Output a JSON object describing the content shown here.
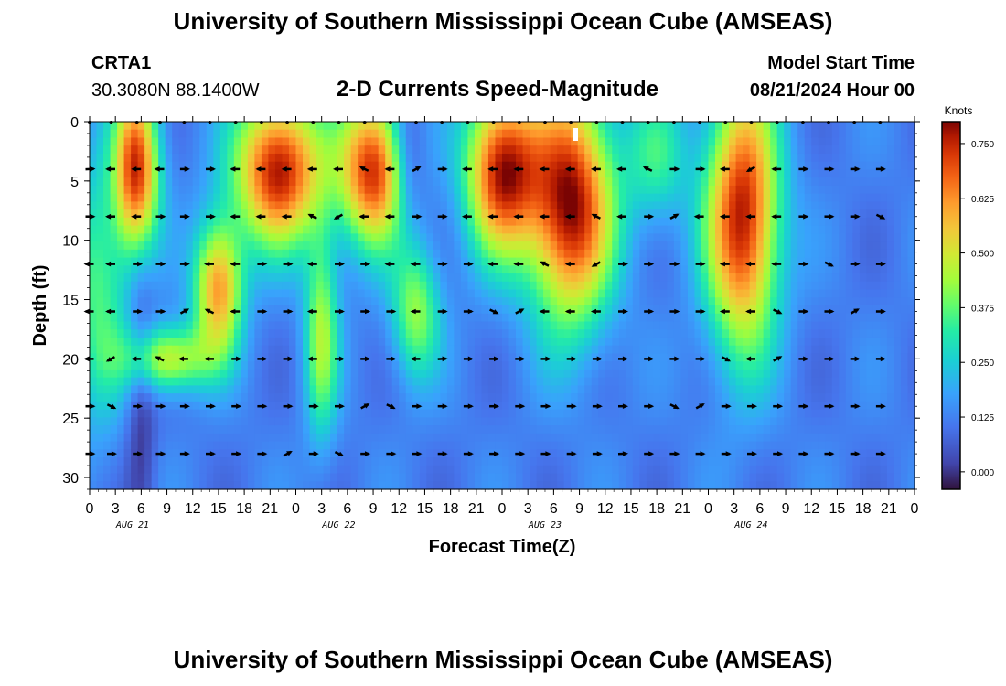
{
  "header": {
    "title": "University of Southern Mississippi Ocean Cube (AMSEAS)",
    "station": "CRTA1",
    "coords": "30.3080N  88.1400W",
    "chart_title": "2-D Currents Speed-Magnitude",
    "model_start_label": "Model Start Time",
    "model_start_value": "08/21/2024 Hour 00"
  },
  "footer": {
    "title": "University of Southern Mississippi Ocean Cube (AMSEAS)"
  },
  "chart_data": {
    "type": "heatmap",
    "title": "2-D Currents Speed-Magnitude",
    "xlabel": "Forecast Time(Z)",
    "ylabel": "Depth (ft)",
    "x_ticks": [
      "0",
      "3",
      "6",
      "9",
      "12",
      "15",
      "18",
      "21",
      "0",
      "3",
      "6",
      "9",
      "12",
      "15",
      "18",
      "21",
      "0",
      "3",
      "6",
      "9",
      "12",
      "15",
      "18",
      "21",
      "0",
      "3",
      "6",
      "9",
      "12",
      "15",
      "18",
      "21",
      "0"
    ],
    "day_labels": [
      "AUG 21",
      "AUG 22",
      "AUG 23",
      "AUG 24"
    ],
    "xlim_hours": [
      0,
      96
    ],
    "ylim_ft": [
      0,
      31
    ],
    "y_ticks": [
      0,
      5,
      10,
      15,
      20,
      25,
      30
    ],
    "arrow_depths_ft": [
      4,
      8,
      12,
      16,
      20,
      24,
      28
    ],
    "arrow_hours": [
      0,
      2.5,
      5.5,
      8.2,
      11,
      14,
      17,
      20,
      23,
      26,
      29,
      32,
      35,
      38,
      41,
      44,
      47,
      50,
      53,
      56,
      59,
      62,
      65,
      68,
      71,
      74,
      77,
      80,
      83,
      86,
      89,
      92
    ],
    "speed_hotspots": [
      {
        "hour": 5.5,
        "depth": 5,
        "knots": 0.7
      },
      {
        "hour": 22,
        "depth": 5,
        "knots": 0.75
      },
      {
        "hour": 32.5,
        "depth": 6,
        "knots": 0.7
      },
      {
        "hour": 48,
        "depth": 5,
        "knots": 0.75
      },
      {
        "hour": 56,
        "depth": 6,
        "knots": 0.78
      },
      {
        "hour": 75,
        "depth": 6,
        "knots": 0.75
      },
      {
        "hour": 15,
        "depth": 14,
        "knots": 0.6
      },
      {
        "hour": 9,
        "depth": 20,
        "knots": 0.45
      }
    ],
    "colorbar": {
      "unit": "Knots",
      "ticks": [
        "0.750",
        "0.625",
        "0.500",
        "0.375",
        "0.250",
        "0.125",
        "0.000"
      ],
      "range": [
        -0.04,
        0.8
      ]
    }
  }
}
